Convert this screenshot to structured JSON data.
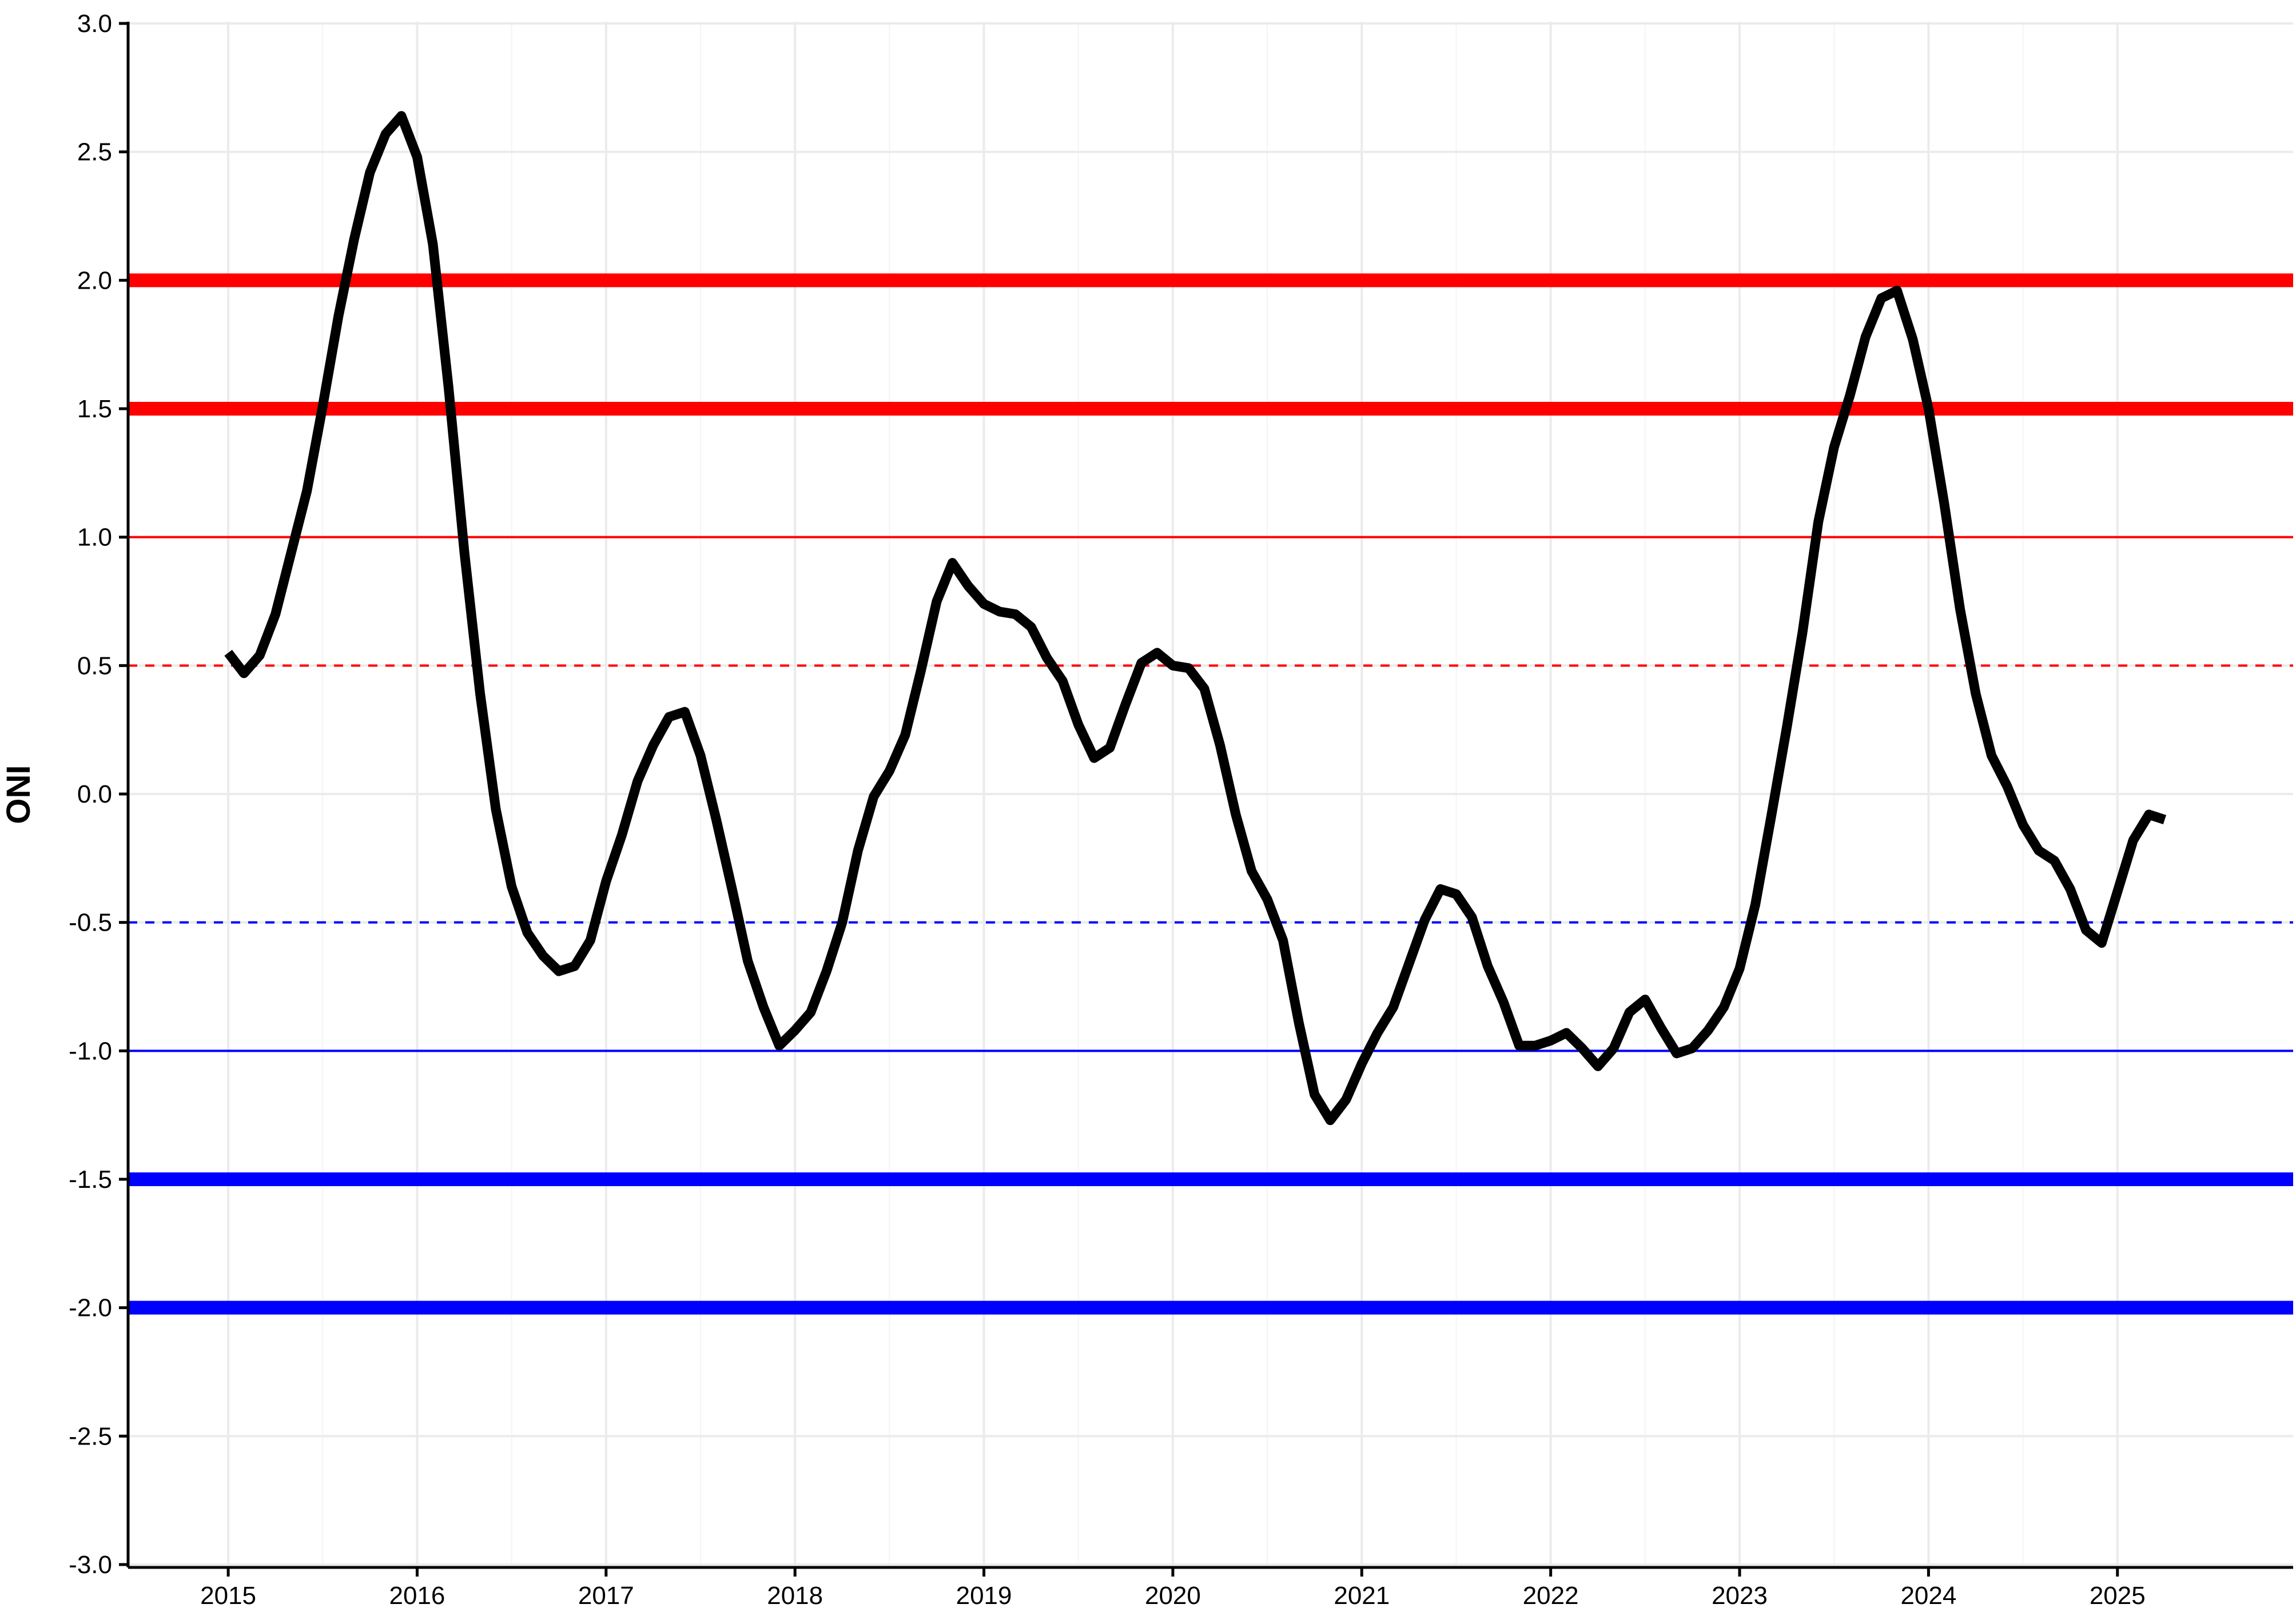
{
  "chart_data": {
    "type": "line",
    "title": "",
    "xlabel": "",
    "ylabel": "ONI",
    "xlim": [
      2014.47,
      2025.93
    ],
    "ylim": [
      -3.0,
      3.0
    ],
    "x_ticks": [
      2015,
      2016,
      2017,
      2018,
      2019,
      2020,
      2021,
      2022,
      2023,
      2024,
      2025
    ],
    "y_ticks": [
      3.0,
      2.5,
      2.0,
      1.5,
      1.0,
      0.5,
      0.0,
      -0.5,
      -1.0,
      -1.5,
      -2.0,
      -2.5,
      -3.0
    ],
    "y_tick_labels": [
      "3.0",
      "2.5",
      "2.0",
      "1.5",
      "1.0",
      "0.5",
      "0.0",
      "-0.5",
      "-1.0",
      "-1.5",
      "-2.0",
      "-2.5",
      "-3.0"
    ],
    "grid": true,
    "legend": "none",
    "threshold_lines": [
      {
        "y": 2.0,
        "color": "#ff0000",
        "style": "thick"
      },
      {
        "y": 1.5,
        "color": "#ff0000",
        "style": "thick"
      },
      {
        "y": 1.0,
        "color": "#ff0000",
        "style": "thin"
      },
      {
        "y": 0.5,
        "color": "#ff0000",
        "style": "dashed"
      },
      {
        "y": -0.5,
        "color": "#0000ff",
        "style": "dashed"
      },
      {
        "y": -1.0,
        "color": "#0000ff",
        "style": "thin"
      },
      {
        "y": -1.5,
        "color": "#0000ff",
        "style": "thick"
      },
      {
        "y": -2.0,
        "color": "#0000ff",
        "style": "thick"
      }
    ],
    "series": [
      {
        "color": "#000000",
        "start": [
          2015,
          1
        ],
        "values": [
          0.55,
          0.47,
          0.54,
          0.7,
          0.94,
          1.18,
          1.51,
          1.86,
          2.16,
          2.42,
          2.57,
          2.64,
          2.48,
          2.14,
          1.58,
          0.94,
          0.39,
          -0.06,
          -0.36,
          -0.54,
          -0.63,
          -0.69,
          -0.67,
          -0.57,
          -0.34,
          -0.16,
          0.05,
          0.19,
          0.3,
          0.32,
          0.15,
          -0.1,
          -0.37,
          -0.65,
          -0.83,
          -0.98,
          -0.92,
          -0.85,
          -0.69,
          -0.5,
          -0.22,
          -0.01,
          0.09,
          0.23,
          0.48,
          0.75,
          0.9,
          0.81,
          0.74,
          0.71,
          0.7,
          0.65,
          0.53,
          0.44,
          0.27,
          0.14,
          0.18,
          0.35,
          0.51,
          0.55,
          0.5,
          0.49,
          0.41,
          0.19,
          -0.08,
          -0.3,
          -0.41,
          -0.57,
          -0.89,
          -1.17,
          -1.27,
          -1.19,
          -1.05,
          -0.93,
          -0.83,
          -0.66,
          -0.49,
          -0.37,
          -0.39,
          -0.48,
          -0.67,
          -0.81,
          -0.98,
          -0.98,
          -0.96,
          -0.93,
          -0.99,
          -1.06,
          -0.99,
          -0.85,
          -0.8,
          -0.91,
          -1.01,
          -0.99,
          -0.92,
          -0.83,
          -0.68,
          -0.43,
          -0.09,
          0.26,
          0.63,
          1.06,
          1.35,
          1.55,
          1.78,
          1.93,
          1.96,
          1.77,
          1.5,
          1.13,
          0.72,
          0.39,
          0.15,
          0.03,
          -0.12,
          -0.22,
          -0.26,
          -0.37,
          -0.53,
          -0.58,
          -0.38,
          -0.18,
          -0.08,
          -0.1
        ]
      }
    ]
  }
}
